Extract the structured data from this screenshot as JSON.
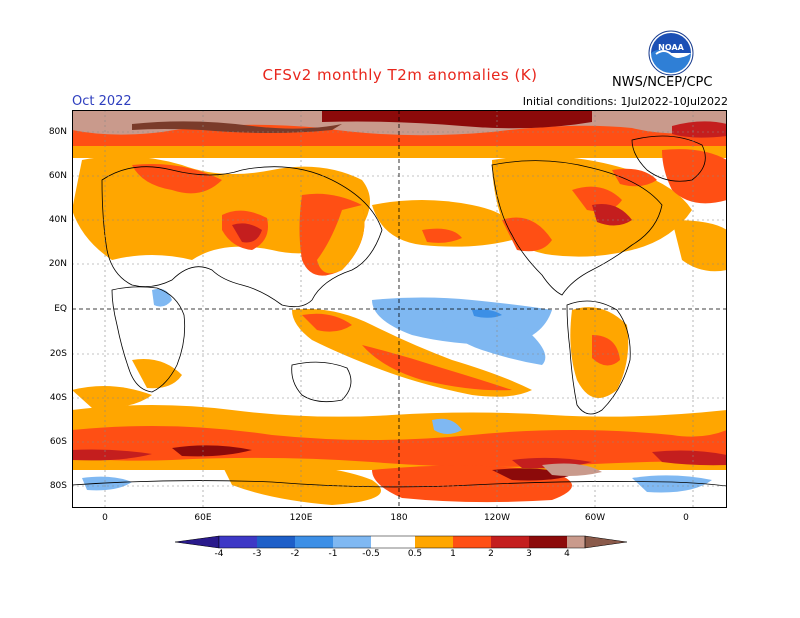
{
  "header": {
    "title": "CFSv2 monthly T2m anomalies (K)",
    "month": "Oct 2022",
    "initial_conditions": "Initial conditions: 1Jul2022-10Jul2022",
    "organization": "NWS/NCEP/CPC",
    "logo_text": "NOAA"
  },
  "map": {
    "lat_labels": [
      "80N",
      "60N",
      "40N",
      "20N",
      "EQ",
      "20S",
      "40S",
      "60S",
      "80S"
    ],
    "lon_labels": [
      "0",
      "60E",
      "120E",
      "180",
      "120W",
      "60W",
      "0"
    ]
  },
  "colorbar": {
    "labels": [
      "-4",
      "-3",
      "-2",
      "-1",
      "-0.5",
      "0.5",
      "1",
      "2",
      "3",
      "4"
    ],
    "colors": {
      "below_-4": "#2a1a8c",
      "-4_-3": "#3d38c6",
      "-3_-2": "#1e5fc8",
      "-2_-1": "#3c8fe6",
      "-1_-0.5": "#7fb8f2",
      "-0.5_0.5": "#ffffff",
      "0.5_1": "#ffa600",
      "1_2": "#ff4f14",
      "2_3": "#c41e1e",
      "3_4": "#8c0a0a",
      "above_4": "#c99a8c"
    }
  }
}
